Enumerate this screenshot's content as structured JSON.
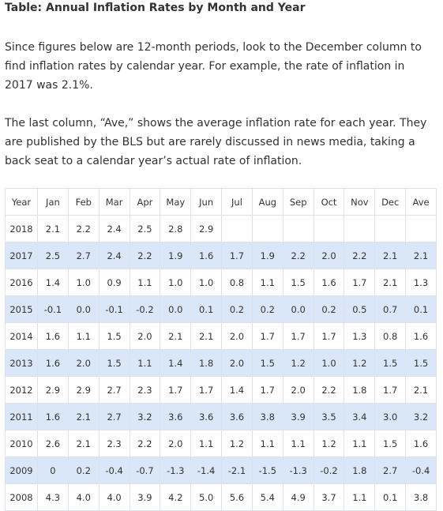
{
  "header": {
    "title": "Table: Annual Inflation Rates by Month and Year"
  },
  "paragraphs": [
    "Since figures below are 12-month periods, look to the December column to find inflation rates by calendar year. For example, the rate of inflation in 2017 was 2.1%.",
    "The last column, “Ave,” shows the average inflation rate for each year. They are published by the BLS but are rarely discussed in news media, taking a back seat to a calendar year’s actual rate of inflation."
  ],
  "table": {
    "columns": [
      "Year",
      "Jan",
      "Feb",
      "Mar",
      "Apr",
      "May",
      "Jun",
      "Jul",
      "Aug",
      "Sep",
      "Oct",
      "Nov",
      "Dec",
      "Ave"
    ],
    "rows": [
      [
        "2018",
        "2.1",
        "2.2",
        "2.4",
        "2.5",
        "2.8",
        "2.9"
      ],
      [
        "2017",
        "2.5",
        "2.7",
        "2.4",
        "2.2",
        "1.9",
        "1.6",
        "1.7",
        "1.9",
        "2.2",
        "2.0",
        "2.2",
        "2.1",
        "2.1"
      ],
      [
        "2016",
        "1.4",
        "1.0",
        "0.9",
        "1.1",
        "1.0",
        "1.0",
        "0.8",
        "1.1",
        "1.5",
        "1.6",
        "1.7",
        "2.1",
        "1.3"
      ],
      [
        "2015",
        "-0.1",
        "0.0",
        "-0.1",
        "-0.2",
        "0.0",
        "0.1",
        "0.2",
        "0.2",
        "0.0",
        "0.2",
        "0.5",
        "0.7",
        "0.1"
      ],
      [
        "2014",
        "1.6",
        "1.1",
        "1.5",
        "2.0",
        "2.1",
        "2.1",
        "2.0",
        "1.7",
        "1.7",
        "1.7",
        "1.3",
        "0.8",
        "1.6"
      ],
      [
        "2013",
        "1.6",
        "2.0",
        "1.5",
        "1.1",
        "1.4",
        "1.8",
        "2.0",
        "1.5",
        "1.2",
        "1.0",
        "1.2",
        "1.5",
        "1.5"
      ],
      [
        "2012",
        "2.9",
        "2.9",
        "2.7",
        "2.3",
        "1.7",
        "1.7",
        "1.4",
        "1.7",
        "2.0",
        "2.2",
        "1.8",
        "1.7",
        "2.1"
      ],
      [
        "2011",
        "1.6",
        "2.1",
        "2.7",
        "3.2",
        "3.6",
        "3.6",
        "3.6",
        "3.8",
        "3.9",
        "3.5",
        "3.4",
        "3.0",
        "3.2"
      ],
      [
        "2010",
        "2.6",
        "2.1",
        "2.3",
        "2.2",
        "2.0",
        "1.1",
        "1.2",
        "1.1",
        "1.1",
        "1.2",
        "1.1",
        "1.5",
        "1.6"
      ],
      [
        "2009",
        "0",
        "0.2",
        "-0.4",
        "-0.7",
        "-1.3",
        "-1.4",
        "-2.1",
        "-1.5",
        "-1.3",
        "-0.2",
        "1.8",
        "2.7",
        "-0.4"
      ],
      [
        "2008",
        "4.3",
        "4.0",
        "4.0",
        "3.9",
        "4.2",
        "5.0",
        "5.6",
        "5.4",
        "4.9",
        "3.7",
        "1.1",
        "0.1",
        "3.8"
      ]
    ]
  }
}
